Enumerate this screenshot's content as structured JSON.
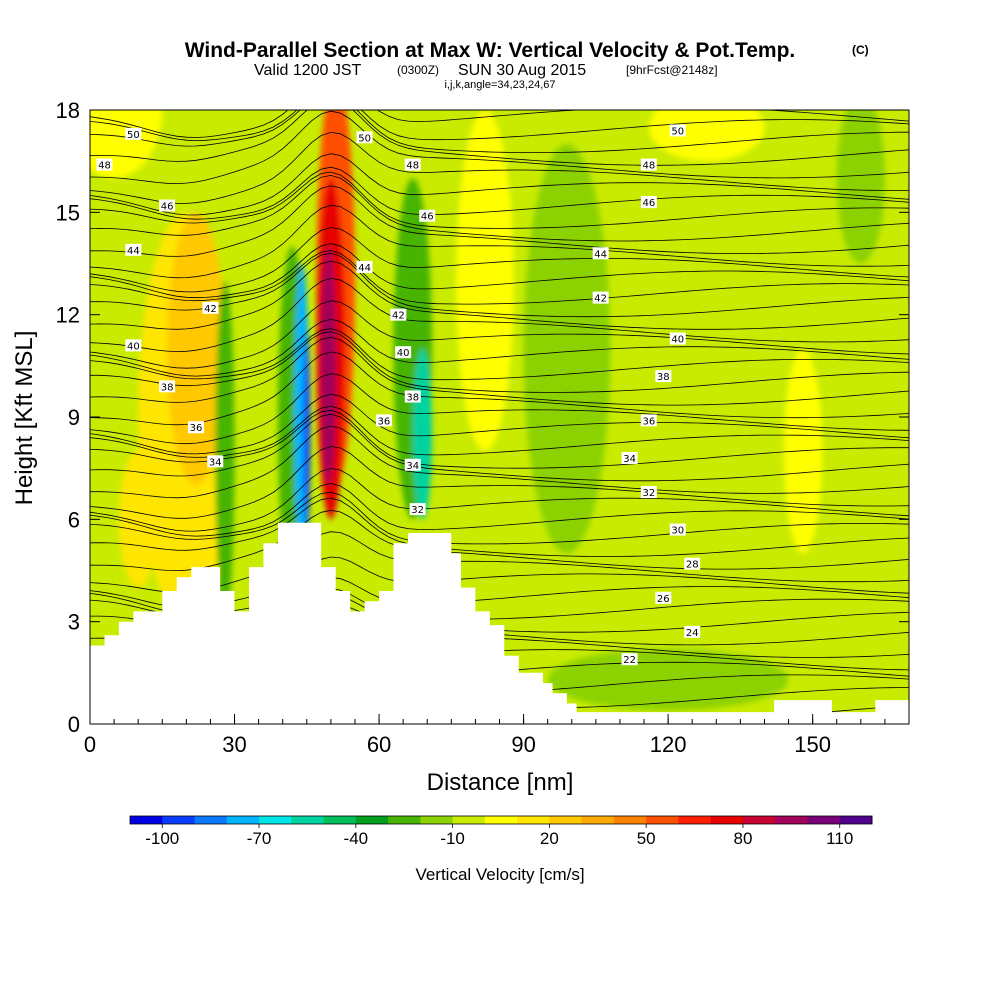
{
  "title": {
    "main": "Wind-Parallel Section at Max W: Vertical Velocity & Pot.Temp.",
    "main_suffix": "(C)",
    "line2_a": "Valid 1200 JST",
    "line2_b": "(0300Z)",
    "line2_c": "SUN 30 Aug 2015",
    "line2_d": "[9hrFcst@2148z]",
    "line3": "i,j,k,angle=34,23,24,67"
  },
  "chart_data": {
    "type": "heatmap",
    "xlabel": "Distance [nm]",
    "ylabel": "Height [Kft MSL]",
    "xlim": [
      0,
      170
    ],
    "ylim": [
      0,
      18
    ],
    "x_ticks": [
      0,
      30,
      60,
      90,
      120,
      150
    ],
    "y_ticks": [
      0,
      3,
      6,
      9,
      12,
      15,
      18
    ],
    "colorbar": {
      "title": "Vertical Velocity [cm/s]",
      "labels": [
        "-100",
        "-70",
        "-40",
        "-10",
        "20",
        "50",
        "80",
        "110"
      ],
      "min": -110,
      "max": 120,
      "colors": [
        "#0000e6",
        "#0a3cff",
        "#0a78ff",
        "#00b4ff",
        "#00e6e6",
        "#00d2a0",
        "#00be5a",
        "#00a01e",
        "#46b400",
        "#8cd200",
        "#c8eb00",
        "#ffff00",
        "#ffe600",
        "#ffc800",
        "#ffaa00",
        "#ff8200",
        "#ff5000",
        "#ff1e00",
        "#e60000",
        "#c80032",
        "#a0005a",
        "#780078",
        "#50008c"
      ]
    },
    "terrain": [
      [
        0,
        2.3
      ],
      [
        3,
        2.3
      ],
      [
        3,
        2.6
      ],
      [
        6,
        2.6
      ],
      [
        6,
        3.0
      ],
      [
        9,
        3.0
      ],
      [
        9,
        3.3
      ],
      [
        15,
        3.3
      ],
      [
        15,
        3.9
      ],
      [
        18,
        3.9
      ],
      [
        18,
        4.3
      ],
      [
        21,
        4.3
      ],
      [
        21,
        4.6
      ],
      [
        27,
        4.6
      ],
      [
        27,
        3.9
      ],
      [
        30,
        3.9
      ],
      [
        30,
        3.3
      ],
      [
        33,
        3.3
      ],
      [
        33,
        4.6
      ],
      [
        36,
        4.6
      ],
      [
        36,
        5.3
      ],
      [
        39,
        5.3
      ],
      [
        39,
        5.9
      ],
      [
        48,
        5.9
      ],
      [
        48,
        4.6
      ],
      [
        51,
        4.6
      ],
      [
        51,
        3.9
      ],
      [
        54,
        3.9
      ],
      [
        54,
        3.3
      ],
      [
        57,
        3.3
      ],
      [
        57,
        3.6
      ],
      [
        60,
        3.6
      ],
      [
        60,
        3.9
      ],
      [
        63,
        3.9
      ],
      [
        63,
        5.3
      ],
      [
        66,
        5.3
      ],
      [
        66,
        5.6
      ],
      [
        75,
        5.6
      ],
      [
        75,
        5.0
      ],
      [
        77,
        5.0
      ],
      [
        77,
        4.0
      ],
      [
        80,
        4.0
      ],
      [
        80,
        3.3
      ],
      [
        83,
        3.3
      ],
      [
        83,
        2.9
      ],
      [
        86,
        2.9
      ],
      [
        86,
        2.0
      ],
      [
        89,
        2.0
      ],
      [
        89,
        1.5
      ],
      [
        94,
        1.5
      ],
      [
        94,
        1.2
      ],
      [
        96,
        1.2
      ],
      [
        96,
        0.9
      ],
      [
        99,
        0.9
      ],
      [
        99,
        0.6
      ],
      [
        101,
        0.6
      ],
      [
        101,
        0.35
      ],
      [
        142,
        0.35
      ],
      [
        142,
        0.7
      ],
      [
        154,
        0.7
      ],
      [
        154,
        0.35
      ],
      [
        163,
        0.35
      ],
      [
        163,
        0.7
      ],
      [
        170,
        0.7
      ]
    ],
    "theta_labels": [
      {
        "text": "50",
        "x": 9,
        "y": 17.3
      },
      {
        "text": "48",
        "x": 3,
        "y": 16.4
      },
      {
        "text": "46",
        "x": 16,
        "y": 15.2
      },
      {
        "text": "44",
        "x": 9,
        "y": 13.9
      },
      {
        "text": "42",
        "x": 25,
        "y": 12.2
      },
      {
        "text": "40",
        "x": 9,
        "y": 11.1
      },
      {
        "text": "38",
        "x": 16,
        "y": 9.9
      },
      {
        "text": "36",
        "x": 22,
        "y": 8.7
      },
      {
        "text": "34",
        "x": 26,
        "y": 7.7
      },
      {
        "text": "50",
        "x": 57,
        "y": 17.2
      },
      {
        "text": "48",
        "x": 67,
        "y": 16.4
      },
      {
        "text": "46",
        "x": 70,
        "y": 14.9
      },
      {
        "text": "44",
        "x": 57,
        "y": 13.4
      },
      {
        "text": "42",
        "x": 64,
        "y": 12.0
      },
      {
        "text": "40",
        "x": 65,
        "y": 10.9
      },
      {
        "text": "38",
        "x": 67,
        "y": 9.6
      },
      {
        "text": "36",
        "x": 61,
        "y": 8.9
      },
      {
        "text": "34",
        "x": 67,
        "y": 7.6
      },
      {
        "text": "32",
        "x": 68,
        "y": 6.3
      },
      {
        "text": "50",
        "x": 122,
        "y": 17.4
      },
      {
        "text": "48",
        "x": 116,
        "y": 16.4
      },
      {
        "text": "46",
        "x": 116,
        "y": 15.3
      },
      {
        "text": "44",
        "x": 106,
        "y": 13.8
      },
      {
        "text": "42",
        "x": 106,
        "y": 12.5
      },
      {
        "text": "40",
        "x": 122,
        "y": 11.3
      },
      {
        "text": "38",
        "x": 119,
        "y": 10.2
      },
      {
        "text": "36",
        "x": 116,
        "y": 8.9
      },
      {
        "text": "34",
        "x": 112,
        "y": 7.8
      },
      {
        "text": "32",
        "x": 116,
        "y": 6.8
      },
      {
        "text": "30",
        "x": 122,
        "y": 5.7
      },
      {
        "text": "28",
        "x": 125,
        "y": 4.7
      },
      {
        "text": "26",
        "x": 119,
        "y": 3.7
      },
      {
        "text": "24",
        "x": 125,
        "y": 2.7
      },
      {
        "text": "22",
        "x": 112,
        "y": 1.9
      }
    ]
  }
}
